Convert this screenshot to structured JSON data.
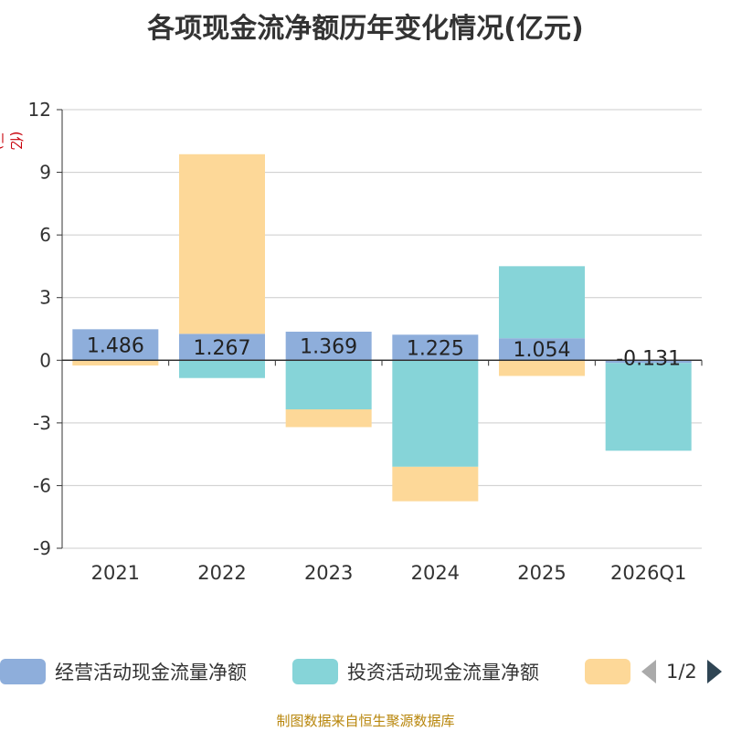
{
  "chart_data": {
    "type": "bar",
    "stacked": true,
    "title": "各项现金流净额历年变化情况(亿元)",
    "ylabel": "(亿元)",
    "xlabel": "",
    "ylim": [
      -9,
      12
    ],
    "yticks": [
      -9,
      -6,
      -3,
      0,
      3,
      6,
      9,
      12
    ],
    "grid": true,
    "categories": [
      "2021",
      "2022",
      "2023",
      "2024",
      "2025",
      "2026Q1"
    ],
    "series": [
      {
        "name": "经营活动现金流量净额",
        "color": "#8eaedb",
        "values": [
          1.486,
          1.267,
          1.369,
          1.225,
          1.054,
          -0.131
        ],
        "labels": [
          "1.486",
          "1.267",
          "1.369",
          "1.225",
          "1.054",
          "-0.131"
        ]
      },
      {
        "name": "投资活动现金流量净额",
        "color": "#86d4d8",
        "values": [
          0.0,
          -0.85,
          -2.35,
          -5.1,
          3.45,
          -4.2
        ]
      },
      {
        "name": "",
        "color": "#fdd898",
        "values": [
          -0.25,
          8.6,
          -0.85,
          -1.65,
          -0.75,
          0.0
        ]
      }
    ],
    "legend_position": "bottom"
  },
  "legend": {
    "items": [
      {
        "label": "经营活动现金流量净额",
        "color": "#8eaedb"
      },
      {
        "label": "投资活动现金流量净额",
        "color": "#86d4d8"
      },
      {
        "label": "",
        "color": "#fdd898"
      }
    ],
    "page_text": "1/2"
  },
  "source_text": "制图数据来自恒生聚源数据库"
}
